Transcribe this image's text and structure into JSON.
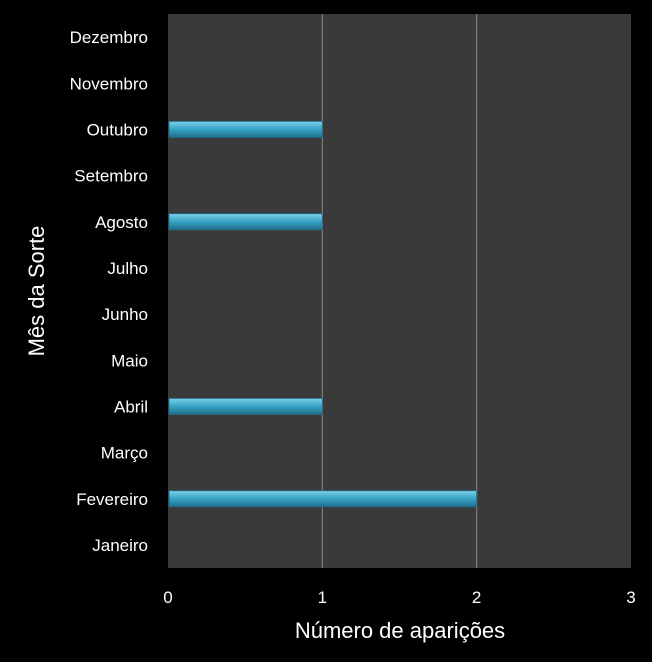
{
  "chart_data": {
    "type": "bar",
    "orientation": "horizontal",
    "categories": [
      "Janeiro",
      "Fevereiro",
      "Março",
      "Abril",
      "Maio",
      "Junho",
      "Julho",
      "Agosto",
      "Setembro",
      "Outubro",
      "Novembro",
      "Dezembro"
    ],
    "values": [
      0,
      2,
      0,
      1,
      0,
      0,
      0,
      1,
      0,
      1,
      0,
      0
    ],
    "xlabel": "Número de aparições",
    "ylabel": "Mês da Sorte",
    "xlim": [
      0,
      3
    ],
    "xticks": [
      "0",
      "1",
      "2",
      "3"
    ],
    "grid": "vertical",
    "colors": {
      "background": "#000000",
      "plot_area": "#3a3a3a",
      "bar_light": "#7fd0e8",
      "bar_mid": "#3ba7c9",
      "bar_dark": "#1f6f8c",
      "gridline": "#8a8a8a",
      "text": "#ffffff"
    }
  }
}
